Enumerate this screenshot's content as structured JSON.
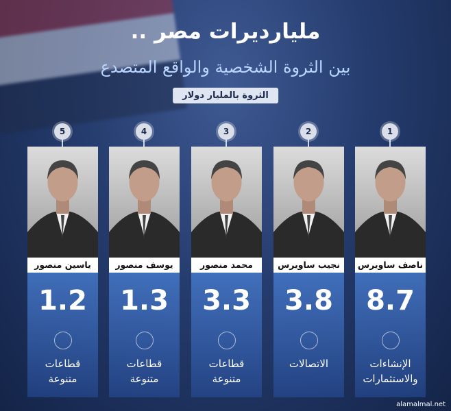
{
  "header": {
    "title": "مليارديرات مصر ..",
    "subtitle": "بين الثروة الشخصية والواقع المتصدع",
    "unit_note": "الثروة بالمليار دولار"
  },
  "people": [
    {
      "rank": "1",
      "name": "ناصف ساويرس",
      "value": "8.7",
      "sector": [
        "الإنشاءات",
        "والاستثمارات"
      ]
    },
    {
      "rank": "2",
      "name": "نجيب ساويرس",
      "value": "3.8",
      "sector": [
        "الاتصالات"
      ]
    },
    {
      "rank": "3",
      "name": "محمد منصور",
      "value": "3.3",
      "sector": [
        "قطاعات",
        "متنوعة"
      ]
    },
    {
      "rank": "4",
      "name": "يوسف منصور",
      "value": "1.3",
      "sector": [
        "قطاعات",
        "متنوعة"
      ]
    },
    {
      "rank": "5",
      "name": "ياسين منصور",
      "value": "1.2",
      "sector": [
        "قطاعات",
        "متنوعة"
      ]
    }
  ],
  "footer": {
    "watermark": "alamalmal.net"
  }
}
